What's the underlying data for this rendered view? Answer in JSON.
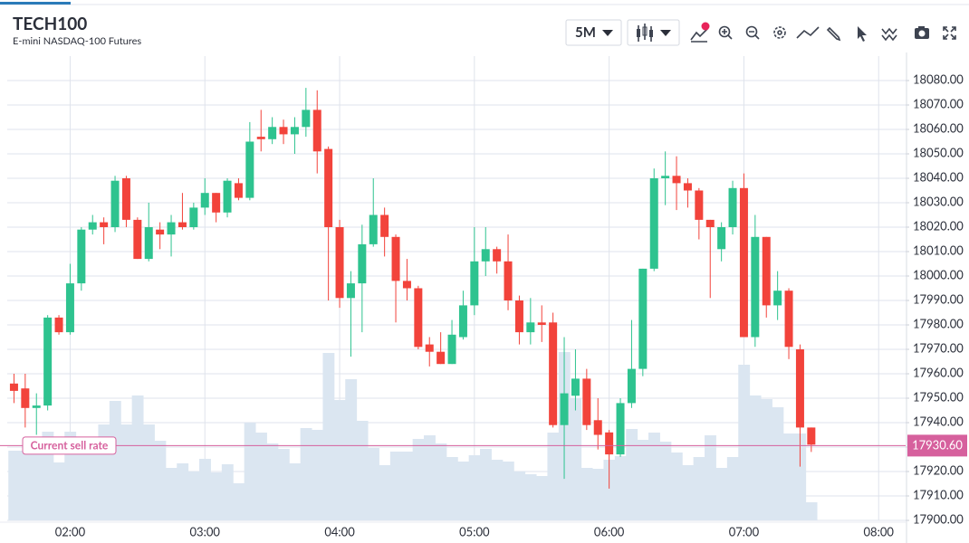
{
  "header": {
    "title": "TECH100",
    "subtitle": "E-mini NASDAQ-100 Futures",
    "interval": "5M"
  },
  "chart_data": {
    "type": "candlestick",
    "x": [
      "01:35",
      "01:40",
      "01:45",
      "01:50",
      "01:55",
      "02:00",
      "02:05",
      "02:10",
      "02:15",
      "02:20",
      "02:25",
      "02:30",
      "02:35",
      "02:40",
      "02:45",
      "02:50",
      "02:55",
      "03:00",
      "03:05",
      "03:10",
      "03:15",
      "03:20",
      "03:25",
      "03:30",
      "03:35",
      "03:40",
      "03:45",
      "03:50",
      "03:55",
      "04:00",
      "04:05",
      "04:10",
      "04:15",
      "04:20",
      "04:25",
      "04:30",
      "04:35",
      "04:40",
      "04:45",
      "04:50",
      "04:55",
      "05:00",
      "05:05",
      "05:10",
      "05:15",
      "05:20",
      "05:25",
      "05:30",
      "05:35",
      "05:40",
      "05:45",
      "05:50",
      "05:55",
      "06:00",
      "06:05",
      "06:10",
      "06:15",
      "06:20",
      "06:25",
      "06:30",
      "06:35",
      "06:40",
      "06:45",
      "06:50",
      "06:55",
      "07:00",
      "07:05",
      "07:10",
      "07:15",
      "07:20",
      "07:25",
      "07:30"
    ],
    "open": [
      17956,
      17954,
      17946,
      17947,
      17983,
      17977,
      17997,
      18019,
      18022,
      18020,
      18040,
      18023,
      18007,
      18019,
      18017,
      18022,
      18020,
      18028,
      18034,
      18026,
      18038,
      18032,
      18057,
      18056,
      18061,
      18058,
      18061,
      18068,
      18052,
      18020,
      17991,
      17997,
      18013,
      18025,
      18016,
      17998,
      17995,
      17972,
      17969,
      17964,
      17975,
      17988,
      18006,
      18011,
      18006,
      17990,
      17977,
      17981,
      17981,
      17939,
      17951,
      17958,
      17941,
      17936,
      17927,
      17948,
      17962,
      18003,
      18040,
      18041,
      18038,
      18035,
      18023,
      18011,
      18020,
      18036,
      17975,
      18016,
      17988,
      17994,
      17970,
      17938
    ],
    "high": [
      17960,
      17960,
      17952,
      17984,
      17984,
      18005,
      18020,
      18025,
      18024,
      18041,
      18041,
      18024,
      18030,
      18022,
      18025,
      18034,
      18030,
      18040,
      18034,
      18040,
      18040,
      18063,
      18068,
      18065,
      18064,
      18065,
      18077,
      18076,
      18053,
      18023,
      18002,
      18021,
      18040,
      18028,
      18017,
      18007,
      17996,
      17975,
      17977,
      17982,
      17994,
      18020,
      18020,
      18012,
      18017,
      17992,
      17991,
      17988,
      17985,
      17975,
      17970,
      17962,
      17950,
      17937,
      17950,
      17982,
      18003,
      18044,
      18051,
      18049,
      18040,
      18036,
      18023,
      18022,
      18039,
      18042,
      18025,
      18016,
      18002,
      17995,
      17972,
      17938
    ],
    "low": [
      17948,
      17938,
      17935,
      17945,
      17976,
      17976,
      17994,
      18017,
      18013,
      18018,
      18020,
      18007,
      18006,
      18011,
      18008,
      18019,
      18019,
      18025,
      18022,
      18024,
      18031,
      18031,
      18051,
      18054,
      18054,
      18050,
      18057,
      18042,
      17990,
      17987,
      17967,
      17977,
      18012,
      18008,
      17981,
      17990,
      17970,
      17963,
      17964,
      17964,
      17974,
      17984,
      18000,
      18001,
      17986,
      17972,
      17972,
      17973,
      17938,
      17917,
      17945,
      17937,
      17929,
      17913,
      17926,
      17946,
      17959,
      18002,
      18029,
      18027,
      18028,
      18015,
      17991,
      18006,
      18017,
      17975,
      17971,
      17983,
      17982,
      17966,
      17922,
      17928
    ],
    "close": [
      17953,
      17946,
      17947,
      17983,
      17977,
      17997,
      18019,
      18022,
      18020,
      18039,
      18023,
      18007,
      18020,
      18017,
      18022,
      18020,
      18028,
      18034,
      18026,
      18039,
      18032,
      18055,
      18056,
      18061,
      18058,
      18061,
      18068,
      18051,
      18020,
      17991,
      17997,
      18013,
      18025,
      18016,
      17998,
      17995,
      17971,
      17969,
      17964,
      17976,
      17988,
      18006,
      18011,
      18006,
      17990,
      17977,
      17981,
      17980,
      17939,
      17952,
      17958,
      17939,
      17935,
      17927,
      17948,
      17962,
      18003,
      18040,
      18041,
      18038,
      18035,
      18023,
      18020,
      18020,
      18036,
      17975,
      18016,
      17988,
      17994,
      17971,
      17938,
      17931
    ],
    "volume": [
      77,
      77,
      78,
      98,
      64,
      98,
      90,
      90,
      106,
      132,
      106,
      138,
      106,
      88,
      58,
      63,
      54,
      68,
      53,
      62,
      41,
      108,
      97,
      85,
      79,
      63,
      102,
      100,
      185,
      133,
      156,
      110,
      80,
      61,
      76,
      76,
      90,
      94,
      85,
      70,
      65,
      72,
      79,
      67,
      65,
      54,
      51,
      49,
      97,
      186,
      135,
      58,
      57,
      67,
      71,
      101,
      89,
      97,
      87,
      75,
      61,
      70,
      94,
      58,
      70,
      172,
      138,
      134,
      125,
      96,
      96,
      20
    ],
    "up_color": "#2ec38f",
    "down_color": "#f2433b",
    "volume_color": "#dbe6f1",
    "xlim": [
      "01:32",
      "08:12"
    ],
    "xticks": [
      "02:00",
      "03:00",
      "04:00",
      "05:00",
      "06:00",
      "07:00",
      "08:00"
    ],
    "ylim": [
      17900,
      18090
    ],
    "vlim": [
      0,
      513
    ],
    "yticks": [
      {
        "value": 17900,
        "label": "17900.00"
      },
      {
        "value": 17910,
        "label": "17910.00"
      },
      {
        "value": 17920,
        "label": "17920.00"
      },
      {
        "value": 17930,
        "label": "17930.00"
      },
      {
        "value": 17940,
        "label": "17940.00"
      },
      {
        "value": 17950,
        "label": "17950.00"
      },
      {
        "value": 17960,
        "label": "17960.00"
      },
      {
        "value": 17970,
        "label": "17970.00"
      },
      {
        "value": 17980,
        "label": "17980.00"
      },
      {
        "value": 17990,
        "label": "17990.00"
      },
      {
        "value": 18000,
        "label": "18000.00"
      },
      {
        "value": 18010,
        "label": "18010.00"
      },
      {
        "value": 18020,
        "label": "18020.00"
      },
      {
        "value": 18030,
        "label": "18030.00"
      },
      {
        "value": 18040,
        "label": "18040.00"
      },
      {
        "value": 18050,
        "label": "18050.00"
      },
      {
        "value": 18060,
        "label": "18060.00"
      },
      {
        "value": 18070,
        "label": "18070.00"
      },
      {
        "value": 18080,
        "label": "18080.00"
      }
    ],
    "grid": true,
    "current_price": {
      "label": "Current sell rate",
      "value": 17930.6,
      "value_label": "17930.60",
      "color": "#d6609d"
    }
  }
}
